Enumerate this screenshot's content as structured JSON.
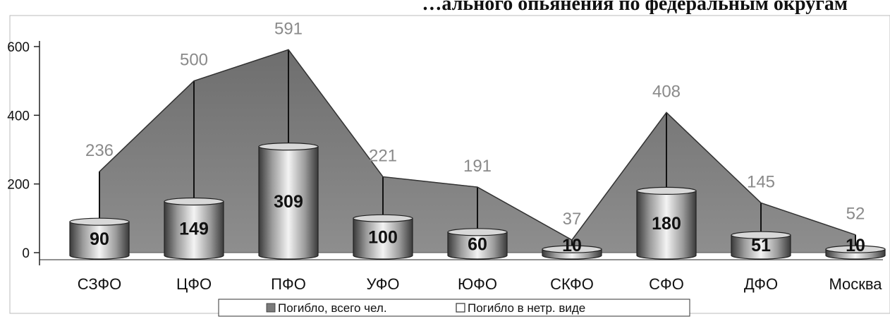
{
  "chart_data": {
    "type": "area",
    "title": "…ального опьянения по федеральным округам",
    "categories": [
      "СЗФО",
      "ЦФО",
      "ПФО",
      "УФО",
      "ЮФО",
      "СКФО",
      "СФО",
      "ДФО",
      "Москва"
    ],
    "series": [
      {
        "name": "Погибло, всего чел.",
        "chart": "area",
        "values": [
          236,
          500,
          591,
          221,
          191,
          37,
          408,
          145,
          52
        ],
        "color": "#7a7a7a"
      },
      {
        "name": "Погибло в нетр. виде",
        "chart": "cylinder-bar",
        "values": [
          90,
          149,
          309,
          100,
          60,
          10,
          180,
          51,
          10
        ],
        "color": "#e6e6e6"
      }
    ],
    "y_ticks": [
      "0",
      "200",
      "400",
      "600"
    ],
    "ylim": [
      0,
      620
    ],
    "grid": false,
    "legend_position": "bottom",
    "area_label_color": "#8a8a8a"
  }
}
